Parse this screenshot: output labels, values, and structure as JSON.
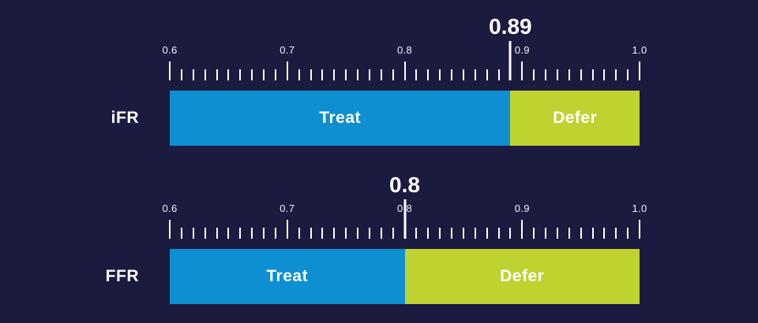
{
  "colors": {
    "background": "#1b1b40",
    "treat_blue": "#0e8fd1",
    "defer_green": "#bfd230",
    "text": "#ffffff"
  },
  "chart_data": [
    {
      "type": "bar",
      "label": "iFR",
      "axis_min": 0.6,
      "axis_max": 1.0,
      "major_tick_step": 0.1,
      "minor_tick_step": 0.01,
      "tick_labels": [
        "0.6",
        "0.7",
        "0.8",
        "0.9",
        "1.0"
      ],
      "cutoff": 0.89,
      "cutoff_label": "0.89",
      "segments": [
        {
          "label": "Treat",
          "from": 0.6,
          "to": 0.89,
          "color": "#0e8fd1"
        },
        {
          "label": "Defer",
          "from": 0.89,
          "to": 1.0,
          "color": "#bfd230"
        }
      ]
    },
    {
      "type": "bar",
      "label": "FFR",
      "axis_min": 0.6,
      "axis_max": 1.0,
      "major_tick_step": 0.1,
      "minor_tick_step": 0.01,
      "tick_labels": [
        "0.6",
        "0.7",
        "0.8",
        "0.9",
        "1.0"
      ],
      "cutoff": 0.8,
      "cutoff_label": "0.8",
      "segments": [
        {
          "label": "Treat",
          "from": 0.6,
          "to": 0.8,
          "color": "#0e8fd1"
        },
        {
          "label": "Defer",
          "from": 0.8,
          "to": 1.0,
          "color": "#bfd230"
        }
      ]
    }
  ]
}
